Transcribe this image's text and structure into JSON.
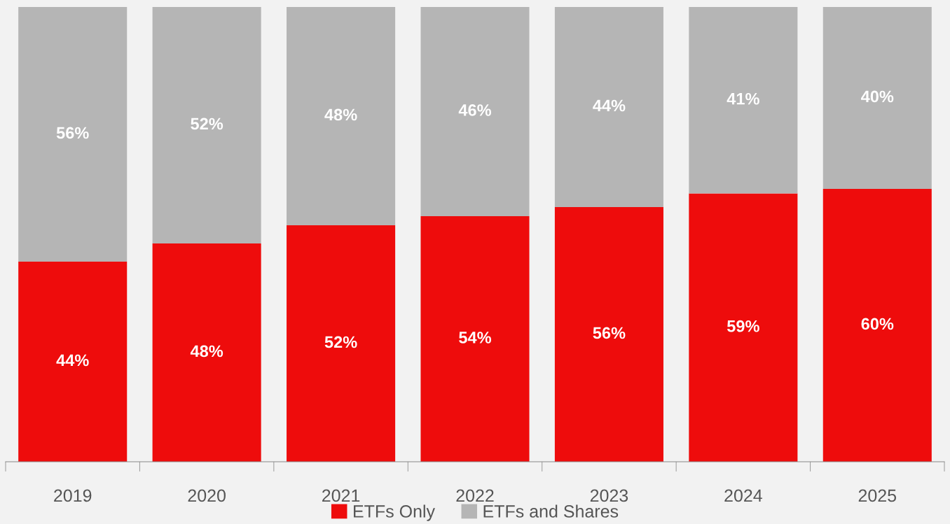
{
  "chart_data": {
    "type": "bar",
    "stacked": true,
    "legend": "bottom",
    "grid": false,
    "categories": [
      "2019",
      "2020",
      "2021",
      "2022",
      "2023",
      "2024",
      "2025"
    ],
    "series": [
      {
        "name": "ETFs Only",
        "color": "#ee0c0c",
        "values": [
          44,
          48,
          52,
          54,
          56,
          59,
          60
        ],
        "value_labels": [
          "44%",
          "48%",
          "52%",
          "54%",
          "56%",
          "59%",
          "60%"
        ]
      },
      {
        "name": "ETFs and Shares",
        "color": "#b5b5b5",
        "values": [
          56,
          52,
          48,
          46,
          44,
          41,
          40
        ],
        "value_labels": [
          "56%",
          "52%",
          "48%",
          "46%",
          "44%",
          "41%",
          "40%"
        ]
      }
    ]
  }
}
